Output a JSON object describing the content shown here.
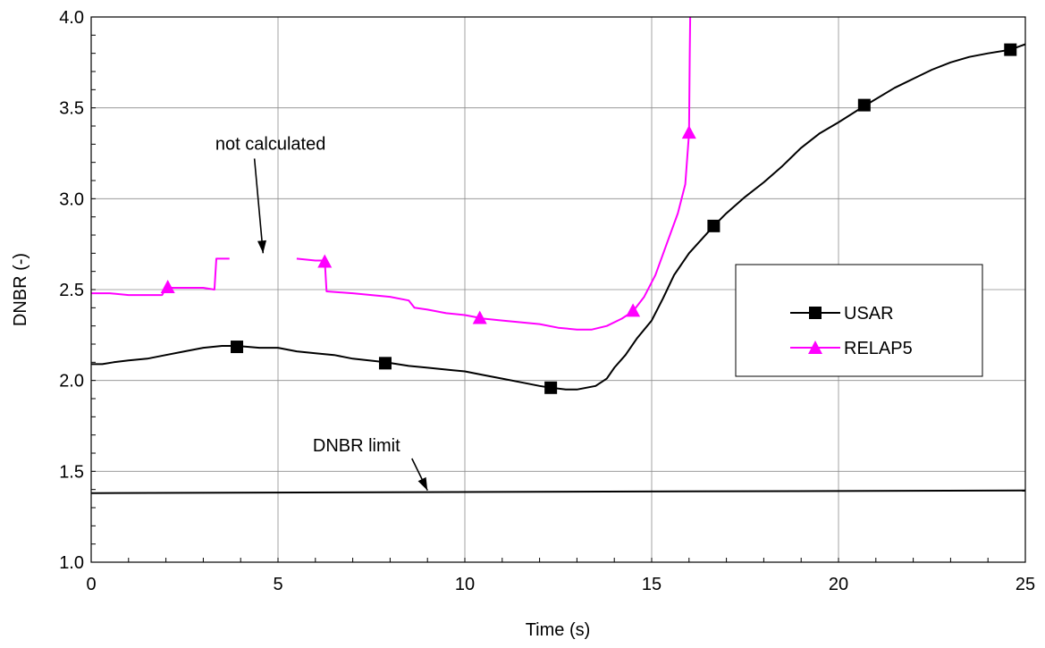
{
  "chart_data": {
    "type": "line",
    "xlabel": "Time (s)",
    "ylabel": "DNBR (-)",
    "xlim": [
      0,
      25
    ],
    "ylim": [
      1.0,
      4.0
    ],
    "x_ticks": [
      "0",
      "5",
      "10",
      "15",
      "20",
      "25"
    ],
    "y_ticks": [
      "1.0",
      "1.5",
      "2.0",
      "2.5",
      "3.0",
      "3.5",
      "4.0"
    ],
    "grid": true,
    "legend_position": "right",
    "series": [
      {
        "name": "USAR",
        "color": "#000000",
        "marker": "square",
        "segments": [
          [
            [
              0.0,
              2.09
            ],
            [
              0.3,
              2.09
            ],
            [
              0.6,
              2.1
            ],
            [
              1.0,
              2.11
            ],
            [
              1.5,
              2.12
            ],
            [
              2.0,
              2.14
            ],
            [
              2.5,
              2.16
            ],
            [
              3.0,
              2.18
            ],
            [
              3.5,
              2.19
            ],
            [
              3.9,
              2.19
            ],
            [
              4.5,
              2.18
            ],
            [
              5.0,
              2.18
            ],
            [
              5.5,
              2.16
            ],
            [
              6.0,
              2.15
            ],
            [
              6.5,
              2.14
            ],
            [
              7.0,
              2.12
            ],
            [
              7.87,
              2.1
            ],
            [
              8.5,
              2.08
            ],
            [
              9.0,
              2.07
            ],
            [
              9.5,
              2.06
            ],
            [
              10.0,
              2.05
            ],
            [
              10.5,
              2.03
            ],
            [
              11.0,
              2.01
            ],
            [
              11.5,
              1.99
            ],
            [
              12.0,
              1.97
            ],
            [
              12.3,
              1.96
            ],
            [
              12.7,
              1.95
            ],
            [
              13.0,
              1.95
            ],
            [
              13.5,
              1.97
            ],
            [
              13.8,
              2.01
            ],
            [
              14.0,
              2.07
            ],
            [
              14.3,
              2.14
            ],
            [
              14.6,
              2.23
            ],
            [
              15.0,
              2.33
            ],
            [
              15.3,
              2.45
            ],
            [
              15.6,
              2.58
            ],
            [
              16.0,
              2.7
            ],
            [
              16.66,
              2.85
            ],
            [
              17.0,
              2.92
            ],
            [
              17.5,
              3.01
            ],
            [
              18.0,
              3.09
            ],
            [
              18.5,
              3.18
            ],
            [
              19.0,
              3.28
            ],
            [
              19.5,
              3.36
            ],
            [
              20.0,
              3.42
            ],
            [
              20.69,
              3.51
            ],
            [
              21.5,
              3.61
            ],
            [
              22.0,
              3.66
            ],
            [
              22.5,
              3.71
            ],
            [
              23.0,
              3.75
            ],
            [
              23.5,
              3.78
            ],
            [
              24.0,
              3.8
            ],
            [
              24.6,
              3.82
            ],
            [
              25.0,
              3.85
            ]
          ]
        ],
        "markers": [
          [
            3.9,
            2.185
          ],
          [
            7.87,
            2.095
          ],
          [
            12.3,
            1.96
          ],
          [
            16.66,
            2.85
          ],
          [
            20.69,
            3.515
          ],
          [
            24.6,
            3.82
          ]
        ]
      },
      {
        "name": "RELAP5",
        "color": "#ff00ff",
        "marker": "triangle",
        "segments": [
          [
            [
              0.0,
              2.48
            ],
            [
              0.5,
              2.48
            ],
            [
              1.0,
              2.47
            ],
            [
              1.5,
              2.47
            ],
            [
              1.9,
              2.47
            ],
            [
              2.0,
              2.51
            ],
            [
              2.5,
              2.51
            ],
            [
              3.0,
              2.51
            ],
            [
              3.3,
              2.5
            ],
            [
              3.35,
              2.67
            ],
            [
              3.7,
              2.67
            ]
          ],
          [
            [
              5.5,
              2.67
            ],
            [
              6.0,
              2.66
            ],
            [
              6.25,
              2.66
            ],
            [
              6.3,
              2.49
            ],
            [
              7.0,
              2.48
            ],
            [
              7.5,
              2.47
            ],
            [
              8.0,
              2.46
            ],
            [
              8.5,
              2.44
            ],
            [
              8.65,
              2.4
            ],
            [
              9.0,
              2.39
            ],
            [
              9.5,
              2.37
            ],
            [
              10.0,
              2.36
            ],
            [
              10.5,
              2.34
            ],
            [
              11.0,
              2.33
            ],
            [
              11.5,
              2.32
            ],
            [
              12.0,
              2.31
            ],
            [
              12.5,
              2.29
            ],
            [
              13.0,
              2.28
            ],
            [
              13.4,
              2.28
            ],
            [
              13.8,
              2.3
            ],
            [
              14.2,
              2.34
            ],
            [
              14.5,
              2.38
            ],
            [
              14.8,
              2.46
            ],
            [
              15.1,
              2.58
            ],
            [
              15.4,
              2.75
            ],
            [
              15.7,
              2.92
            ],
            [
              15.9,
              3.08
            ],
            [
              16.0,
              3.36
            ],
            [
              16.02,
              3.8
            ],
            [
              16.03,
              4.0
            ]
          ]
        ],
        "markers": [
          [
            2.05,
            2.51
          ],
          [
            6.25,
            2.65
          ],
          [
            10.4,
            2.34
          ],
          [
            14.5,
            2.38
          ],
          [
            16.0,
            3.36
          ]
        ]
      },
      {
        "name": "DNBR limit",
        "color": "#000000",
        "marker": "none",
        "segments": [
          [
            [
              0.0,
              1.38
            ],
            [
              25.0,
              1.395
            ]
          ]
        ],
        "markers": []
      }
    ],
    "legend": [
      {
        "label": "USAR",
        "color": "#000000",
        "marker": "square"
      },
      {
        "label": "RELAP5",
        "color": "#ff00ff",
        "marker": "triangle"
      }
    ],
    "annotations": [
      {
        "text": "not calculated",
        "x": 4.8,
        "y": 3.27,
        "arrow_to": [
          4.6,
          2.7
        ]
      },
      {
        "text": "DNBR limit",
        "x": 7.1,
        "y": 1.61,
        "arrow_to": [
          9.0,
          1.395
        ]
      }
    ]
  }
}
